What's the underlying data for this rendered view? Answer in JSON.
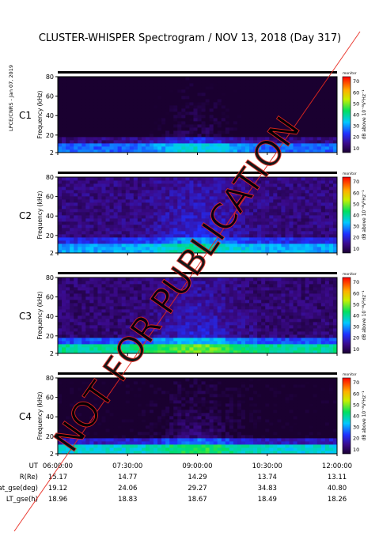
{
  "title": "CLUSTER-WHISPER Spectrogram / NOV 13, 2018 (Day 317)",
  "side_stamp": "LPCE/CNRS - Jan 07, 2019",
  "watermark": "NOT FOR PUBLICATION",
  "colorbar": {
    "label": "dB above 10⁻⁸V²Hz⁻¹",
    "ticks": [
      10,
      20,
      30,
      40,
      50,
      60,
      70
    ],
    "note": "monitor"
  },
  "chart_data": [
    {
      "type": "heatmap",
      "spacecraft": "C1",
      "label_color": "#000000",
      "ylabel": "Frequency (kHz)",
      "yticks": [
        2,
        20,
        40,
        60,
        80
      ],
      "ylim": [
        2,
        80
      ],
      "xlim": [
        "06:00:00",
        "12:00:00"
      ],
      "zlim": [
        10,
        70
      ],
      "background_level": 6,
      "low_band_level": 28,
      "bright_time": "09:00:00"
    },
    {
      "type": "heatmap",
      "spacecraft": "C2",
      "label_color": "#000000",
      "ylabel": "Frequency (kHz)",
      "yticks": [
        2,
        20,
        40,
        60,
        80
      ],
      "ylim": [
        2,
        80
      ],
      "xlim": [
        "06:00:00",
        "12:00:00"
      ],
      "zlim": [
        10,
        70
      ],
      "background_level": 16,
      "low_band_level": 32,
      "bright_time": "09:00:00"
    },
    {
      "type": "heatmap",
      "spacecraft": "C3",
      "label_color": "#22c000",
      "ylabel": "Frequency (kHz)",
      "yticks": [
        2,
        20,
        40,
        60,
        80
      ],
      "ylim": [
        2,
        80
      ],
      "xlim": [
        "06:00:00",
        "12:00:00"
      ],
      "zlim": [
        10,
        70
      ],
      "background_level": 15,
      "low_band_level": 40,
      "bright_time": "09:00:00"
    },
    {
      "type": "heatmap",
      "spacecraft": "C4",
      "label_color": "#000000",
      "ylabel": "Frequency (kHz)",
      "yticks": [
        2,
        20,
        40,
        60,
        80
      ],
      "ylim": [
        2,
        80
      ],
      "xlim": [
        "06:00:00",
        "12:00:00"
      ],
      "zlim": [
        10,
        70
      ],
      "background_level": 8,
      "low_band_level": 36,
      "bright_time": "09:00:00"
    }
  ],
  "ephemeris": {
    "row_labels": [
      "UT",
      "R(Re)",
      "Lat_gse(deg)",
      "LT_gse(h)"
    ],
    "columns": [
      [
        "06:00:00",
        "15.17",
        "19.12",
        "18.96"
      ],
      [
        "07:30:00",
        "14.77",
        "24.06",
        "18.83"
      ],
      [
        "09:00:00",
        "14.29",
        "29.27",
        "18.67"
      ],
      [
        "10:30:00",
        "13.74",
        "34.83",
        "18.49"
      ],
      [
        "12:00:00",
        "13.11",
        "40.80",
        "18.26"
      ]
    ]
  }
}
